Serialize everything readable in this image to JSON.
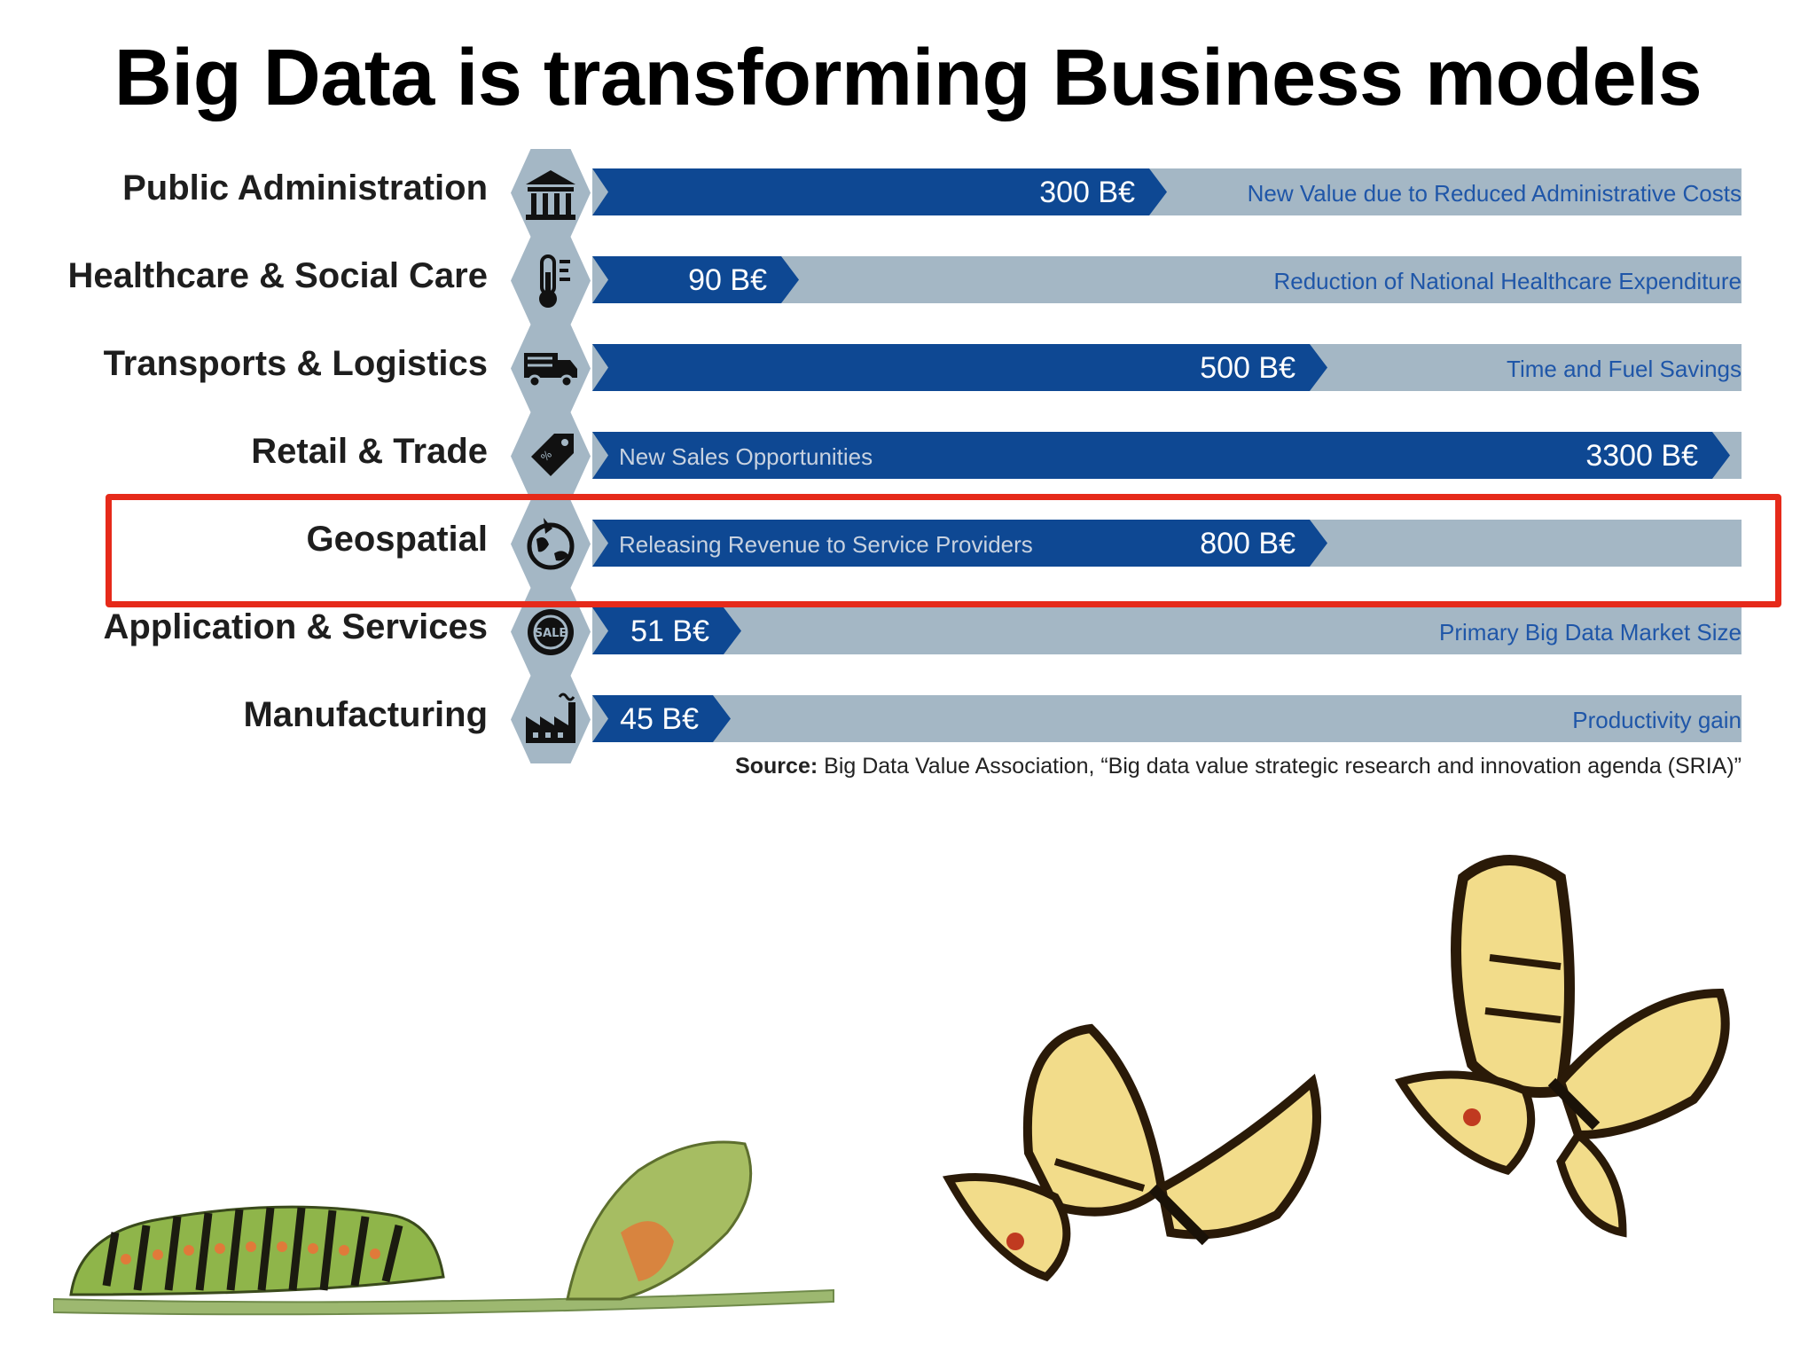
{
  "title": "Big Data is transforming Business models",
  "chart_data": {
    "type": "bar",
    "orientation": "horizontal",
    "unit": "B€",
    "categories": [
      "Public Administration",
      "Healthcare & Social Care",
      "Transports & Logistics",
      "Retail & Trade",
      "Geospatial",
      "Application & Services",
      "Manufacturing"
    ],
    "values": [
      300,
      90,
      500,
      3300,
      800,
      51,
      45
    ],
    "value_labels": [
      "300 B€",
      "90 B€",
      "500 B€",
      "3300 B€",
      "800 B€",
      "51 B€",
      "45 B€"
    ],
    "descriptions": [
      "New Value due to Reduced Administrative Costs",
      "Reduction of National Healthcare Expenditure",
      "Time and Fuel Savings",
      "New Sales Opportunities",
      "Releasing Revenue to Service Providers",
      "Primary Big Data Market Size",
      "Productivity gain"
    ],
    "fill_fraction": [
      0.5,
      0.18,
      0.64,
      0.99,
      0.64,
      0.13,
      0.12
    ],
    "icons": [
      "government-building-icon",
      "thermometer-icon",
      "truck-icon",
      "price-tag-icon",
      "globe-pin-icon",
      "sale-badge-icon",
      "factory-icon"
    ],
    "highlighted_category": "Geospatial",
    "colors": {
      "fill": "#0e4893",
      "track": "#a4b7c5",
      "highlight": "#e62a1a",
      "description": "#1f56a8"
    }
  },
  "source": {
    "label": "Source:",
    "text": "Big Data Value Association, “Big data value strategic research and innovation agenda (SRIA)”"
  },
  "illustration": {
    "subject": "caterpillar-to-butterfly metamorphosis",
    "stages": [
      "caterpillar",
      "chrysalis",
      "butterfly",
      "butterfly"
    ]
  }
}
